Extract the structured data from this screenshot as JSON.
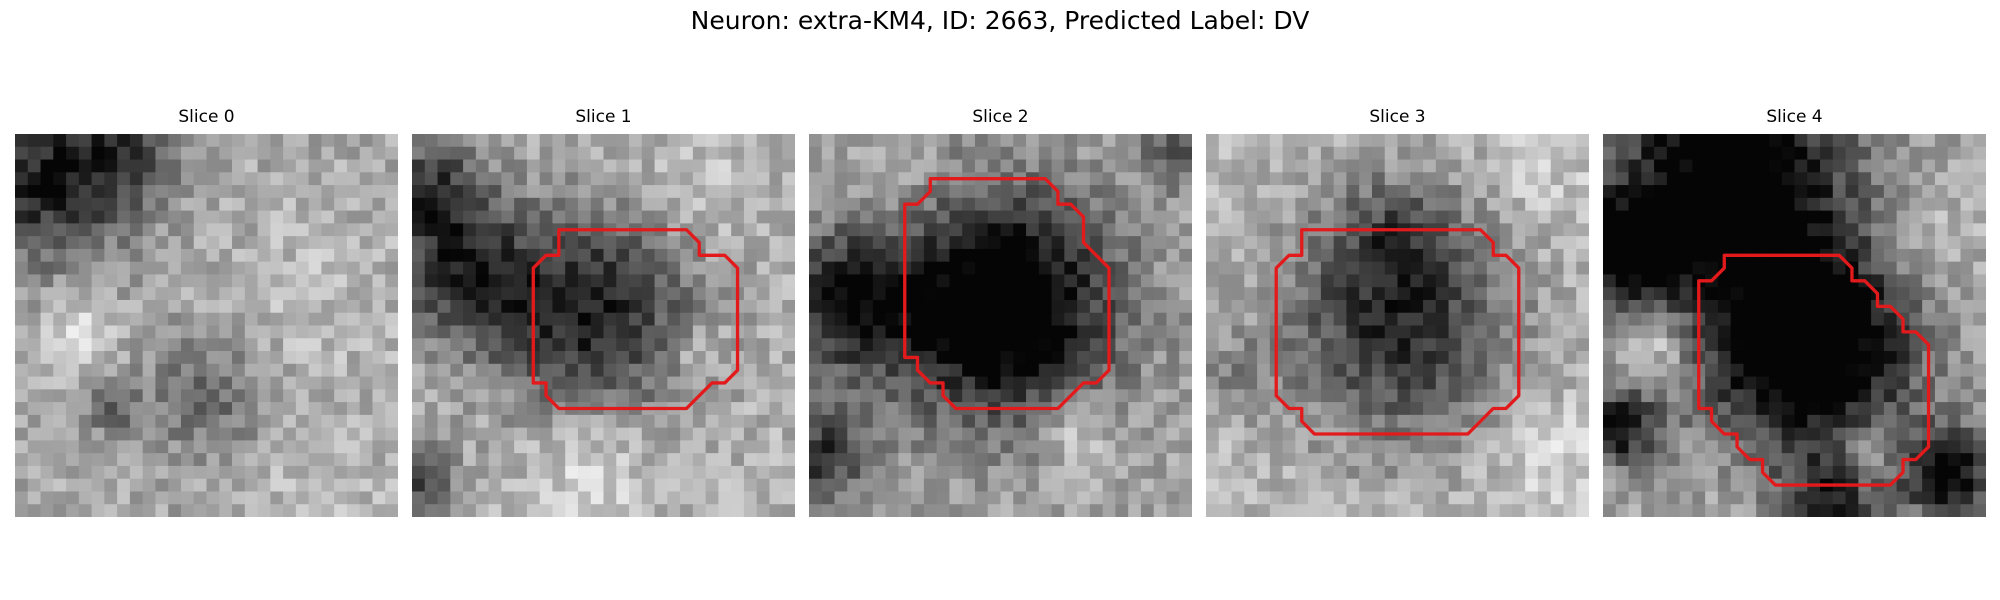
{
  "figure": {
    "title": "Neuron: extra-KM4, ID: 2663, Predicted Label: DV"
  },
  "grid_size": 30,
  "contour_color": "#e31a1c",
  "panels": [
    {
      "title": "Slice 0",
      "seed": 11,
      "base": 0.66,
      "blobs": [
        {
          "cx": 2.5,
          "cy": 3.5,
          "r": 6.5,
          "d": 0.55
        },
        {
          "cx": 9,
          "cy": 1.5,
          "r": 4,
          "d": 0.3
        },
        {
          "cx": 15,
          "cy": 20.5,
          "r": 4.5,
          "d": 0.28
        },
        {
          "cx": 7.5,
          "cy": 21.5,
          "r": 2.5,
          "d": 0.25
        }
      ],
      "brights": [
        {
          "cx": 5,
          "cy": 15.5,
          "r": 3,
          "d": 0.18
        },
        {
          "cx": 24,
          "cy": 13,
          "r": 7,
          "d": 0.08
        },
        {
          "cx": 24,
          "cy": 28,
          "r": 5,
          "d": 0.1
        }
      ],
      "contour": []
    },
    {
      "title": "Slice 1",
      "seed": 23,
      "base": 0.7,
      "blobs": [
        {
          "cx": 14,
          "cy": 14,
          "r": 8,
          "d": 0.58
        },
        {
          "cx": 4,
          "cy": 11,
          "r": 5.5,
          "d": 0.45
        },
        {
          "cx": 1.5,
          "cy": 4.5,
          "r": 4.5,
          "d": 0.45
        },
        {
          "cx": 0.5,
          "cy": 27,
          "r": 3,
          "d": 0.4
        }
      ],
      "brights": [
        {
          "cx": 14,
          "cy": 26,
          "r": 4.5,
          "d": 0.18
        },
        {
          "cx": 22.5,
          "cy": 17,
          "r": 2,
          "d": 0.18
        },
        {
          "cx": 22,
          "cy": 5,
          "r": 4,
          "d": 0.1
        }
      ],
      "contour": [
        [
          11.5,
          7.5
        ],
        [
          21.5,
          7.5
        ],
        [
          22.5,
          8.5
        ],
        [
          22.5,
          9.5
        ],
        [
          24.5,
          9.5
        ],
        [
          25.5,
          10.5
        ],
        [
          25.5,
          18.5
        ],
        [
          24.5,
          19.5
        ],
        [
          23.5,
          19.5
        ],
        [
          22.5,
          20.5
        ],
        [
          22.5,
          20.5
        ],
        [
          21.5,
          21.5
        ],
        [
          11.5,
          21.5
        ],
        [
          10.5,
          20.5
        ],
        [
          10.5,
          19.5
        ],
        [
          9.5,
          19.5
        ],
        [
          9.5,
          10.5
        ],
        [
          10.5,
          9.5
        ],
        [
          11.5,
          9.5
        ],
        [
          11.5,
          7.5
        ]
      ]
    },
    {
      "title": "Slice 2",
      "seed": 37,
      "base": 0.64,
      "blobs": [
        {
          "cx": 15,
          "cy": 13.5,
          "r": 8.5,
          "d": 0.85
        },
        {
          "cx": 3,
          "cy": 13,
          "r": 5.5,
          "d": 0.55
        },
        {
          "cx": 1,
          "cy": 25,
          "r": 3.5,
          "d": 0.45
        },
        {
          "cx": 29,
          "cy": 1,
          "r": 3,
          "d": 0.35
        }
      ],
      "brights": [
        {
          "cx": 21,
          "cy": 23.5,
          "r": 3,
          "d": 0.22
        },
        {
          "cx": 6,
          "cy": 4,
          "r": 4,
          "d": 0.12
        }
      ],
      "contour": [
        [
          9.5,
          3.5
        ],
        [
          18.5,
          3.5
        ],
        [
          19.5,
          4.5
        ],
        [
          19.5,
          5.5
        ],
        [
          20.5,
          5.5
        ],
        [
          21.5,
          6.5
        ],
        [
          21.5,
          8.5
        ],
        [
          22.5,
          9.5
        ],
        [
          23.5,
          10.5
        ],
        [
          23.5,
          18.5
        ],
        [
          22.5,
          19.5
        ],
        [
          21.5,
          19.5
        ],
        [
          20.5,
          20.5
        ],
        [
          20.5,
          20.5
        ],
        [
          19.5,
          21.5
        ],
        [
          11.5,
          21.5
        ],
        [
          10.5,
          20.5
        ],
        [
          10.5,
          19.5
        ],
        [
          9.5,
          19.5
        ],
        [
          8.5,
          18.5
        ],
        [
          8.5,
          17.5
        ],
        [
          7.5,
          17.5
        ],
        [
          7.5,
          5.5
        ],
        [
          8.5,
          5.5
        ],
        [
          9.5,
          4.5
        ],
        [
          9.5,
          3.5
        ]
      ]
    },
    {
      "title": "Slice 3",
      "seed": 51,
      "base": 0.72,
      "blobs": [
        {
          "cx": 15,
          "cy": 15,
          "r": 9,
          "d": 0.55
        },
        {
          "cx": 15,
          "cy": 8,
          "r": 5,
          "d": 0.25
        },
        {
          "cx": 2,
          "cy": 19,
          "r": 3,
          "d": 0.18
        }
      ],
      "brights": [
        {
          "cx": 26.5,
          "cy": 25,
          "r": 4,
          "d": 0.15
        },
        {
          "cx": 26,
          "cy": 4,
          "r": 4,
          "d": 0.08
        }
      ],
      "contour": [
        [
          7.5,
          7.5
        ],
        [
          21.5,
          7.5
        ],
        [
          22.5,
          8.5
        ],
        [
          22.5,
          9.5
        ],
        [
          23.5,
          9.5
        ],
        [
          24.5,
          10.5
        ],
        [
          24.5,
          20.5
        ],
        [
          23.5,
          21.5
        ],
        [
          22.5,
          21.5
        ],
        [
          21.5,
          22.5
        ],
        [
          21.5,
          22.5
        ],
        [
          20.5,
          23.5
        ],
        [
          8.5,
          23.5
        ],
        [
          7.5,
          22.5
        ],
        [
          7.5,
          21.5
        ],
        [
          6.5,
          21.5
        ],
        [
          5.5,
          20.5
        ],
        [
          5.5,
          10.5
        ],
        [
          6.5,
          9.5
        ],
        [
          7.5,
          9.5
        ],
        [
          7.5,
          7.5
        ]
      ]
    },
    {
      "title": "Slice 4",
      "seed": 67,
      "base": 0.66,
      "blobs": [
        {
          "cx": 16,
          "cy": 16.5,
          "r": 8,
          "d": 0.95
        },
        {
          "cx": 10,
          "cy": 3,
          "r": 9,
          "d": 0.8
        },
        {
          "cx": 2,
          "cy": 9,
          "r": 4,
          "d": 0.75
        },
        {
          "cx": 27,
          "cy": 26.5,
          "r": 3.5,
          "d": 0.7
        },
        {
          "cx": 1.5,
          "cy": 23,
          "r": 3,
          "d": 0.6
        },
        {
          "cx": 18,
          "cy": 28.5,
          "r": 4,
          "d": 0.45
        }
      ],
      "brights": [
        {
          "cx": 4.5,
          "cy": 16.5,
          "r": 2.5,
          "d": 0.25
        },
        {
          "cx": 20.5,
          "cy": 25,
          "r": 2.5,
          "d": 0.28
        },
        {
          "cx": 25,
          "cy": 9,
          "r": 4,
          "d": 0.15
        }
      ],
      "contour": [
        [
          9.5,
          9.5
        ],
        [
          18.5,
          9.5
        ],
        [
          19.5,
          10.5
        ],
        [
          19.5,
          11.5
        ],
        [
          20.5,
          11.5
        ],
        [
          21.5,
          12.5
        ],
        [
          21.5,
          13.5
        ],
        [
          22.5,
          13.5
        ],
        [
          23.5,
          14.5
        ],
        [
          23.5,
          15.5
        ],
        [
          24.5,
          15.5
        ],
        [
          25.5,
          16.5
        ],
        [
          25.5,
          24.5
        ],
        [
          24.5,
          25.5
        ],
        [
          23.5,
          25.5
        ],
        [
          23.5,
          26.5
        ],
        [
          22.5,
          27.5
        ],
        [
          13.5,
          27.5
        ],
        [
          12.5,
          26.5
        ],
        [
          12.5,
          25.5
        ],
        [
          11.5,
          25.5
        ],
        [
          10.5,
          24.5
        ],
        [
          10.5,
          23.5
        ],
        [
          9.5,
          23.5
        ],
        [
          8.5,
          22.5
        ],
        [
          8.5,
          21.5
        ],
        [
          7.5,
          21.5
        ],
        [
          7.5,
          11.5
        ],
        [
          8.5,
          11.5
        ],
        [
          9.5,
          10.5
        ],
        [
          9.5,
          9.5
        ]
      ]
    }
  ]
}
